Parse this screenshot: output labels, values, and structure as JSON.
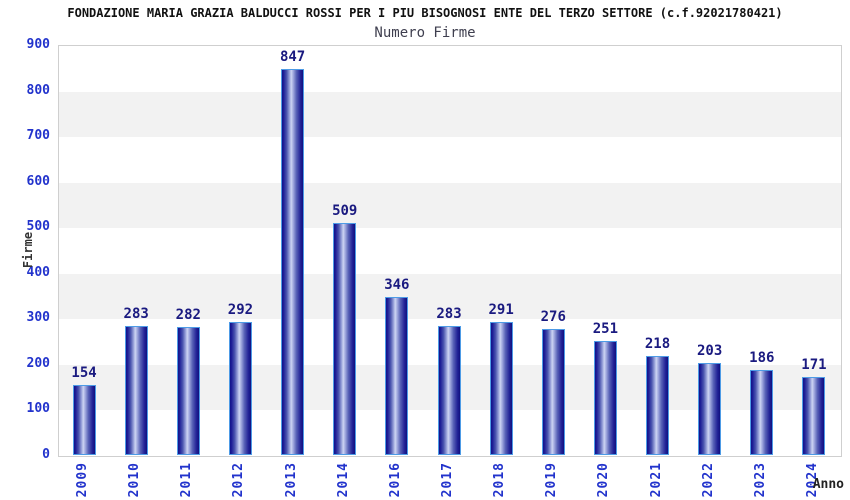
{
  "header": {
    "title": "FONDAZIONE MARIA GRAZIA BALDUCCI ROSSI PER I PIU BISOGNOSI ENTE DEL TERZO SETTORE (c.f.92021780421)",
    "subtitle": "Numero Firme"
  },
  "chart_data": {
    "type": "bar",
    "title": "FONDAZIONE MARIA GRAZIA BALDUCCI ROSSI PER I PIU BISOGNOSI ENTE DEL TERZO SETTORE (c.f.92021780421)",
    "subtitle": "Numero Firme",
    "categories": [
      "2009",
      "2010",
      "2011",
      "2012",
      "2013",
      "2014",
      "2016",
      "2017",
      "2018",
      "2019",
      "2020",
      "2021",
      "2022",
      "2023",
      "2024"
    ],
    "values": [
      154,
      283,
      282,
      292,
      847,
      509,
      346,
      283,
      291,
      276,
      251,
      218,
      203,
      186,
      171
    ],
    "xlabel": "Anno",
    "ylabel": "Firme",
    "ylim": [
      0,
      900
    ],
    "yticks": [
      0,
      100,
      200,
      300,
      400,
      500,
      600,
      700,
      800,
      900
    ],
    "grid": "alternating horizontal bands, no legend",
    "legend": null,
    "colors": {
      "tick_label": "#2233cc",
      "value_label": "#1a1a80",
      "bar_dark": "#12128a",
      "bar_light": "#ccd3f2",
      "bar_border": "#4d9be6",
      "band_gray": "#f2f2f2",
      "band_white": "#ffffff",
      "plot_border": "#cfcfcf",
      "axis_title": "#333333",
      "title_text": "#111111"
    }
  }
}
